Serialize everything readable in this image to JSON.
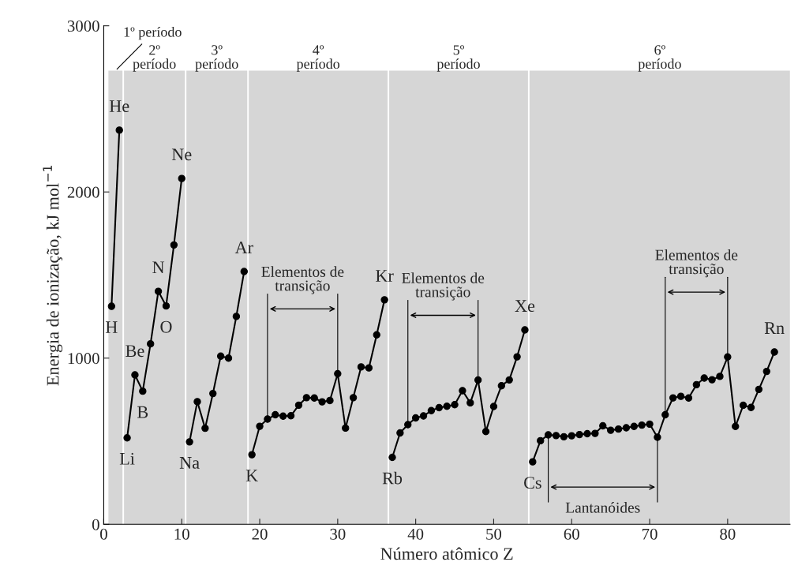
{
  "chart_data": {
    "type": "line",
    "xlabel": "Número atômico Z",
    "ylabel": "Energia de ionização, kJ mol$^{−1}$",
    "xlim": [
      0,
      88
    ],
    "xticks": [
      0,
      10,
      20,
      30,
      40,
      50,
      60,
      70,
      80
    ],
    "ylim": [
      0,
      3000
    ],
    "yticks": [
      0,
      1000,
      2000,
      3000
    ],
    "grid": false,
    "marker": "circle",
    "line_style": "solid",
    "series": [
      {
        "color": "#000000",
        "x": [
          1,
          2
        ],
        "values": [
          1312,
          2372
        ]
      },
      {
        "color": "#000000",
        "x": [
          3,
          4,
          5,
          6,
          7,
          8,
          9,
          10
        ],
        "values": [
          520,
          899,
          801,
          1086,
          1402,
          1314,
          1681,
          2081
        ]
      },
      {
        "color": "#000000",
        "x": [
          11,
          12,
          13,
          14,
          15,
          16,
          17,
          18
        ],
        "values": [
          496,
          738,
          578,
          787,
          1012,
          1000,
          1251,
          1521
        ]
      },
      {
        "color": "#000000",
        "x": [
          19,
          20,
          21,
          22,
          23,
          24,
          25,
          26,
          27,
          28,
          29,
          30,
          31,
          32,
          33,
          34,
          35,
          36
        ],
        "values": [
          419,
          590,
          633,
          659,
          651,
          653,
          717,
          762,
          760,
          737,
          745,
          906,
          579,
          762,
          947,
          941,
          1140,
          1351
        ]
      },
      {
        "color": "#000000",
        "x": [
          37,
          38,
          39,
          40,
          41,
          42,
          43,
          44,
          45,
          46,
          47,
          48,
          49,
          50,
          51,
          52,
          53,
          54
        ],
        "values": [
          403,
          550,
          600,
          640,
          652,
          684,
          702,
          710,
          720,
          804,
          731,
          868,
          558,
          709,
          834,
          869,
          1008,
          1170
        ]
      },
      {
        "color": "#000000",
        "x": [
          55,
          56,
          57,
          58,
          59,
          60,
          61,
          62,
          63,
          64,
          65,
          66,
          67,
          68,
          69,
          70,
          71,
          72,
          73,
          74,
          75,
          76,
          77,
          78,
          79,
          80,
          81,
          82,
          83,
          84,
          85,
          86
        ],
        "values": [
          376,
          503,
          538,
          534,
          527,
          533,
          540,
          545,
          547,
          593,
          566,
          573,
          581,
          589,
          597,
          603,
          524,
          659,
          761,
          770,
          760,
          840,
          880,
          870,
          890,
          1007,
          589,
          716,
          703,
          812,
          920,
          1037
        ]
      }
    ],
    "annotations": [
      {
        "text": "H",
        "x": 1,
        "y": 1312
      },
      {
        "text": "He",
        "x": 2,
        "y": 2372
      },
      {
        "text": "Li",
        "x": 3,
        "y": 520
      },
      {
        "text": "Be",
        "x": 4,
        "y": 899
      },
      {
        "text": "B",
        "x": 5,
        "y": 801
      },
      {
        "text": "N",
        "x": 7,
        "y": 1402
      },
      {
        "text": "O",
        "x": 8,
        "y": 1314
      },
      {
        "text": "Ne",
        "x": 10,
        "y": 2081
      },
      {
        "text": "Na",
        "x": 11,
        "y": 496
      },
      {
        "text": "Ar",
        "x": 18,
        "y": 1521
      },
      {
        "text": "K",
        "x": 19,
        "y": 419
      },
      {
        "text": "Kr",
        "x": 36,
        "y": 1351
      },
      {
        "text": "Rb",
        "x": 37,
        "y": 403
      },
      {
        "text": "Xe",
        "x": 54,
        "y": 1170
      },
      {
        "text": "Cs",
        "x": 55,
        "y": 376
      },
      {
        "text": "Rn",
        "x": 86,
        "y": 1037
      },
      "Elementos de\ntransição",
      "Elementos de\ntransição",
      "Lantanóides",
      "Elementos de\ntransição"
    ],
    "ref_lines": [
      {
        "axis": "x",
        "value": 21
      },
      {
        "axis": "x",
        "value": 30
      },
      {
        "axis": "x",
        "value": 39
      },
      {
        "axis": "x",
        "value": 48
      },
      {
        "axis": "x",
        "value": 57
      },
      {
        "axis": "x",
        "value": 71
      },
      {
        "axis": "x",
        "value": 72
      },
      {
        "axis": "x",
        "value": 80
      }
    ],
    "bands": [
      {
        "axis": "x",
        "from": 0.6,
        "to": 2.4,
        "label": "1º período",
        "color": "#b4b4b4"
      },
      {
        "axis": "x",
        "from": 2.6,
        "to": 10.4,
        "label": "2º\nperíodo",
        "color": "#b4b4b4"
      },
      {
        "axis": "x",
        "from": 10.6,
        "to": 18.4,
        "label": "3º\nperíodo",
        "color": "#b4b4b4"
      },
      {
        "axis": "x",
        "from": 18.6,
        "to": 36.4,
        "label": "4º\nperíodo",
        "color": "#b4b4b4"
      },
      {
        "axis": "x",
        "from": 36.6,
        "to": 54.4,
        "label": "5º\nperíodo",
        "color": "#b4b4b4"
      },
      {
        "axis": "x",
        "from": 54.6,
        "to": 88,
        "label": "6º\nperíodo",
        "color": "#b4b4b4"
      }
    ]
  }
}
